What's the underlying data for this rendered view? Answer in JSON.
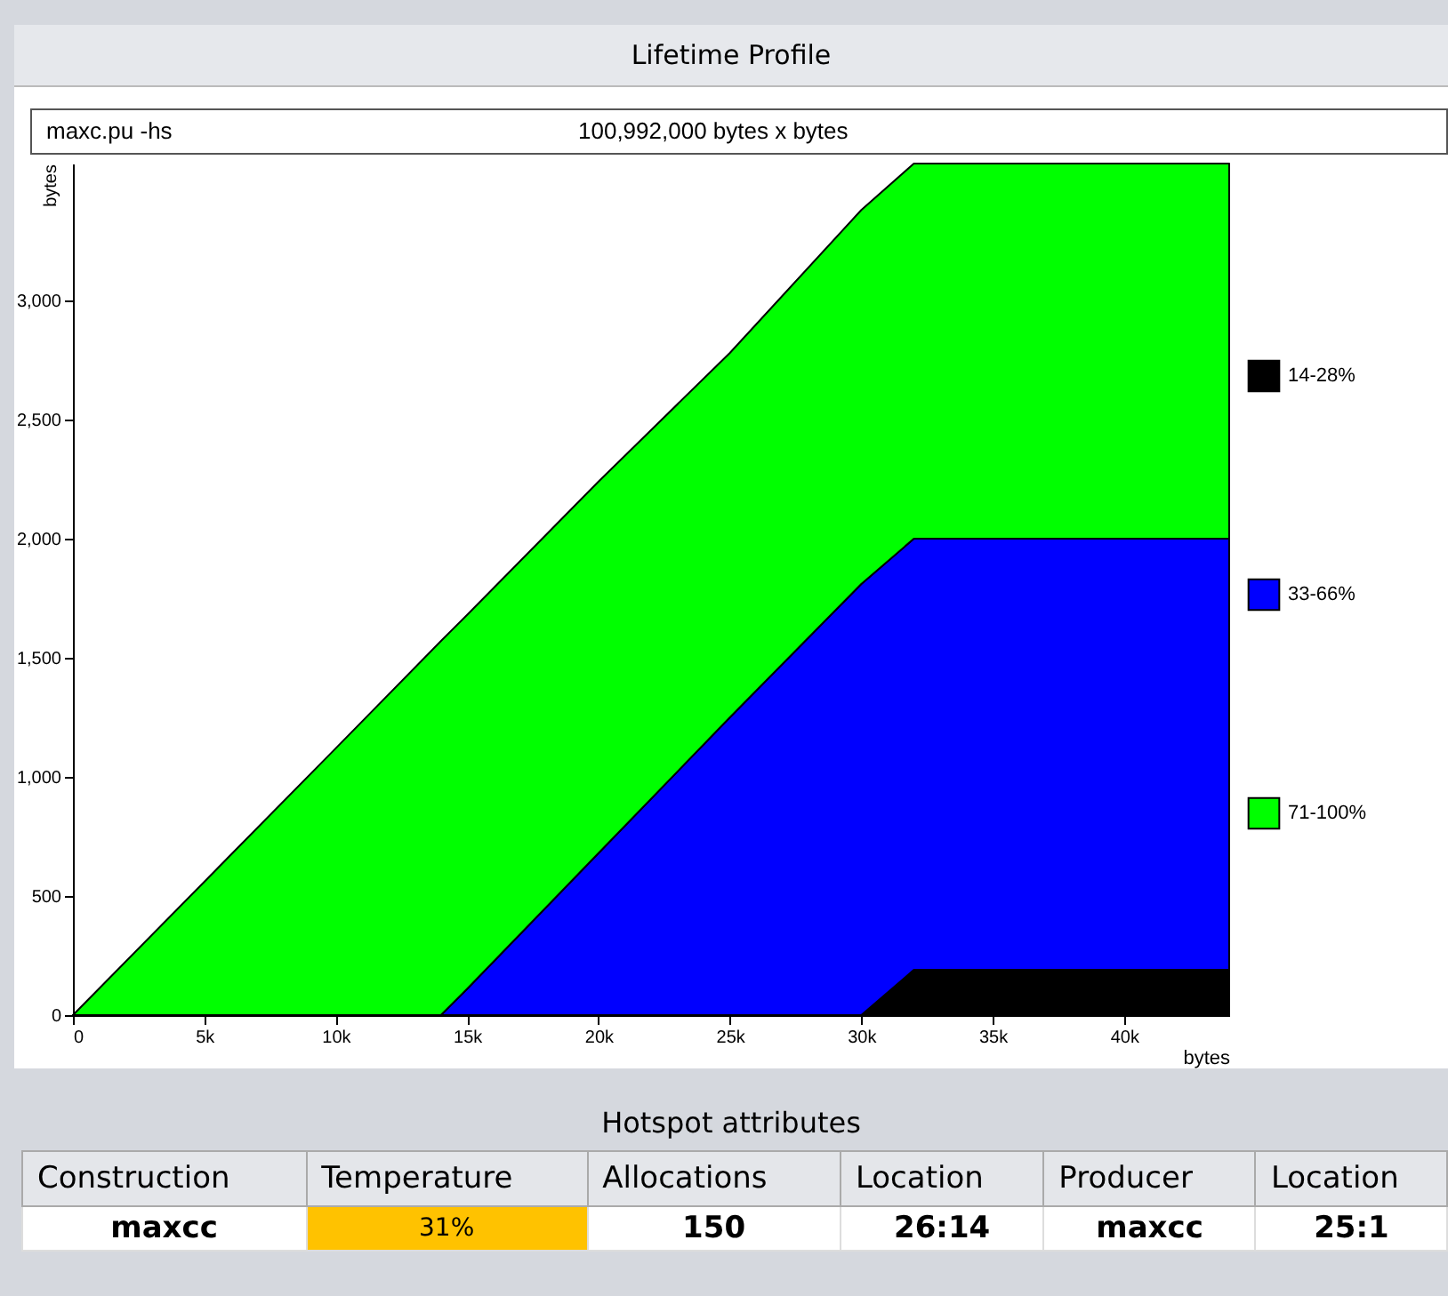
{
  "chart_data": {
    "type": "area",
    "title": "Lifetime Profile",
    "subtitle": "maxc.pu  -hs",
    "xlabel": "bytes",
    "ylabel": "bytes",
    "stacked": true,
    "legend": "right",
    "grid": false,
    "x": [
      0,
      5000,
      10000,
      14000,
      15000,
      20000,
      25000,
      30000,
      32000,
      44000
    ],
    "series": [
      {
        "name": "14-28%",
        "color": "#000000",
        "values": [
          0,
          0,
          0,
          0,
          0,
          0,
          0,
          0,
          190,
          190
        ]
      },
      {
        "name": "33-66%",
        "color": "#0000ff",
        "values": [
          0,
          0,
          0,
          0,
          110,
          680,
          1250,
          1810,
          1810,
          1810
        ]
      },
      {
        "name": "71-100%",
        "color": "#00ff00",
        "values": [
          0,
          560,
          1120,
          1570,
          1570,
          1560,
          1530,
          1570,
          1575,
          1575
        ]
      }
    ],
    "xlim": [
      0,
      44000
    ],
    "ylim": [
      0,
      3575
    ],
    "xticks": [
      0,
      {
        "value": 5000,
        "label": "5k"
      },
      {
        "value": 10000,
        "label": "10k"
      },
      {
        "value": 15000,
        "label": "15k"
      },
      {
        "value": 20000,
        "label": "20k"
      },
      {
        "value": 25000,
        "label": "25k"
      },
      {
        "value": 30000,
        "label": "30k"
      },
      {
        "value": 35000,
        "label": "35k"
      },
      {
        "value": 40000,
        "label": "40k"
      }
    ],
    "yticks": [
      0,
      500,
      {
        "value": 1000,
        "label": "1,000"
      },
      {
        "value": 1500,
        "label": "1,500"
      },
      {
        "value": 2000,
        "label": "2,000"
      },
      {
        "value": 2500,
        "label": "2,500"
      },
      {
        "value": 3000,
        "label": "3,000"
      }
    ],
    "annotations": [
      "100,992,000 bytes x bytes",
      "Hotspot attributes",
      "Construction",
      "Temperature",
      "Allocations",
      "Location",
      "Producer",
      "Location",
      "maxcc",
      "31%",
      "150",
      "26:14",
      "maxcc",
      "25:1"
    ]
  }
}
